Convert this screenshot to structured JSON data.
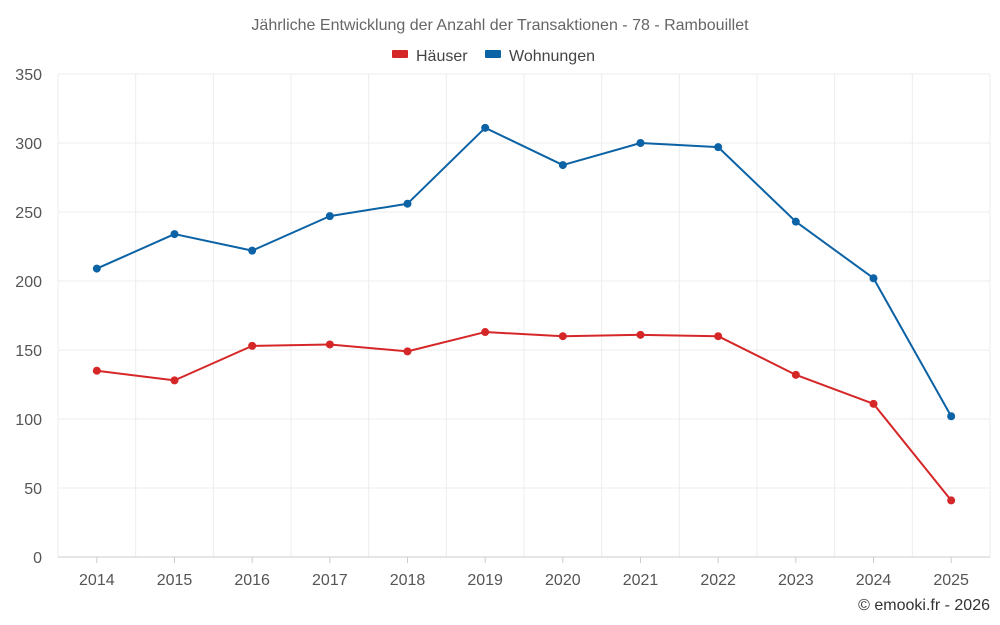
{
  "chart_data": {
    "type": "line",
    "title": "Jährliche Entwicklung der Anzahl der Transaktionen - 78 - Rambouillet",
    "categories": [
      "2014",
      "2015",
      "2016",
      "2017",
      "2018",
      "2019",
      "2020",
      "2021",
      "2022",
      "2023",
      "2024",
      "2025"
    ],
    "series": [
      {
        "name": "Häuser",
        "color": "#d62728",
        "values": [
          135,
          128,
          153,
          154,
          149,
          163,
          160,
          161,
          160,
          132,
          111,
          41
        ]
      },
      {
        "name": "Wohnungen",
        "color": "#0b62a4",
        "values": [
          209,
          234,
          222,
          247,
          256,
          311,
          284,
          300,
          297,
          243,
          202,
          102
        ]
      }
    ],
    "ylim": [
      0,
      350
    ],
    "yticks": [
      0,
      50,
      100,
      150,
      200,
      250,
      300,
      350
    ],
    "grid": true,
    "legend_position": "top-center",
    "credit": "© emooki.fr - 2026"
  }
}
